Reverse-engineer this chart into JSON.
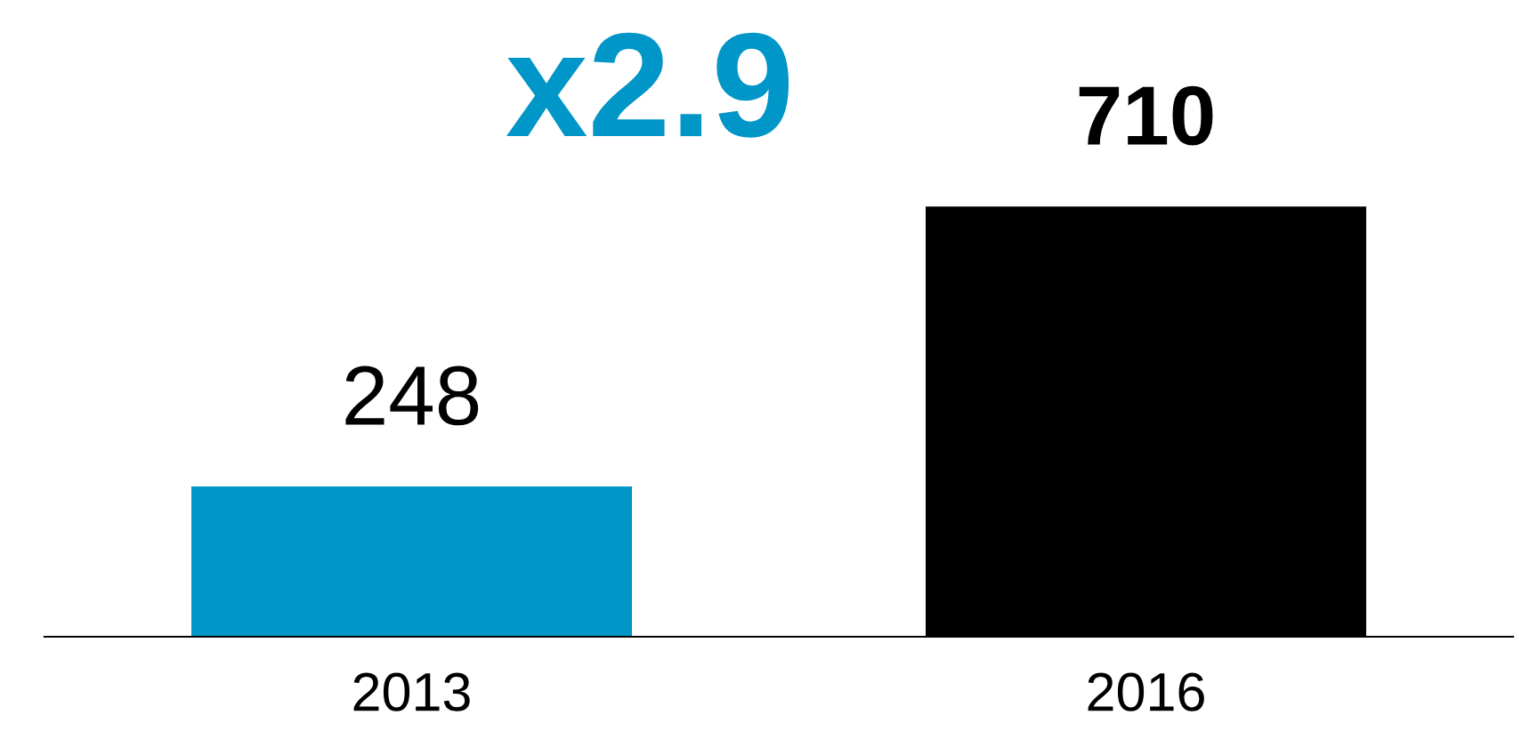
{
  "chart_data": {
    "type": "bar",
    "categories": [
      "2013",
      "2016"
    ],
    "values": [
      248,
      710
    ],
    "colors": [
      "#0096c8",
      "#000000"
    ],
    "data_labels": true,
    "grid": false,
    "legend": false,
    "tick_labels": "x",
    "annotations": [
      "x2.9"
    ]
  }
}
